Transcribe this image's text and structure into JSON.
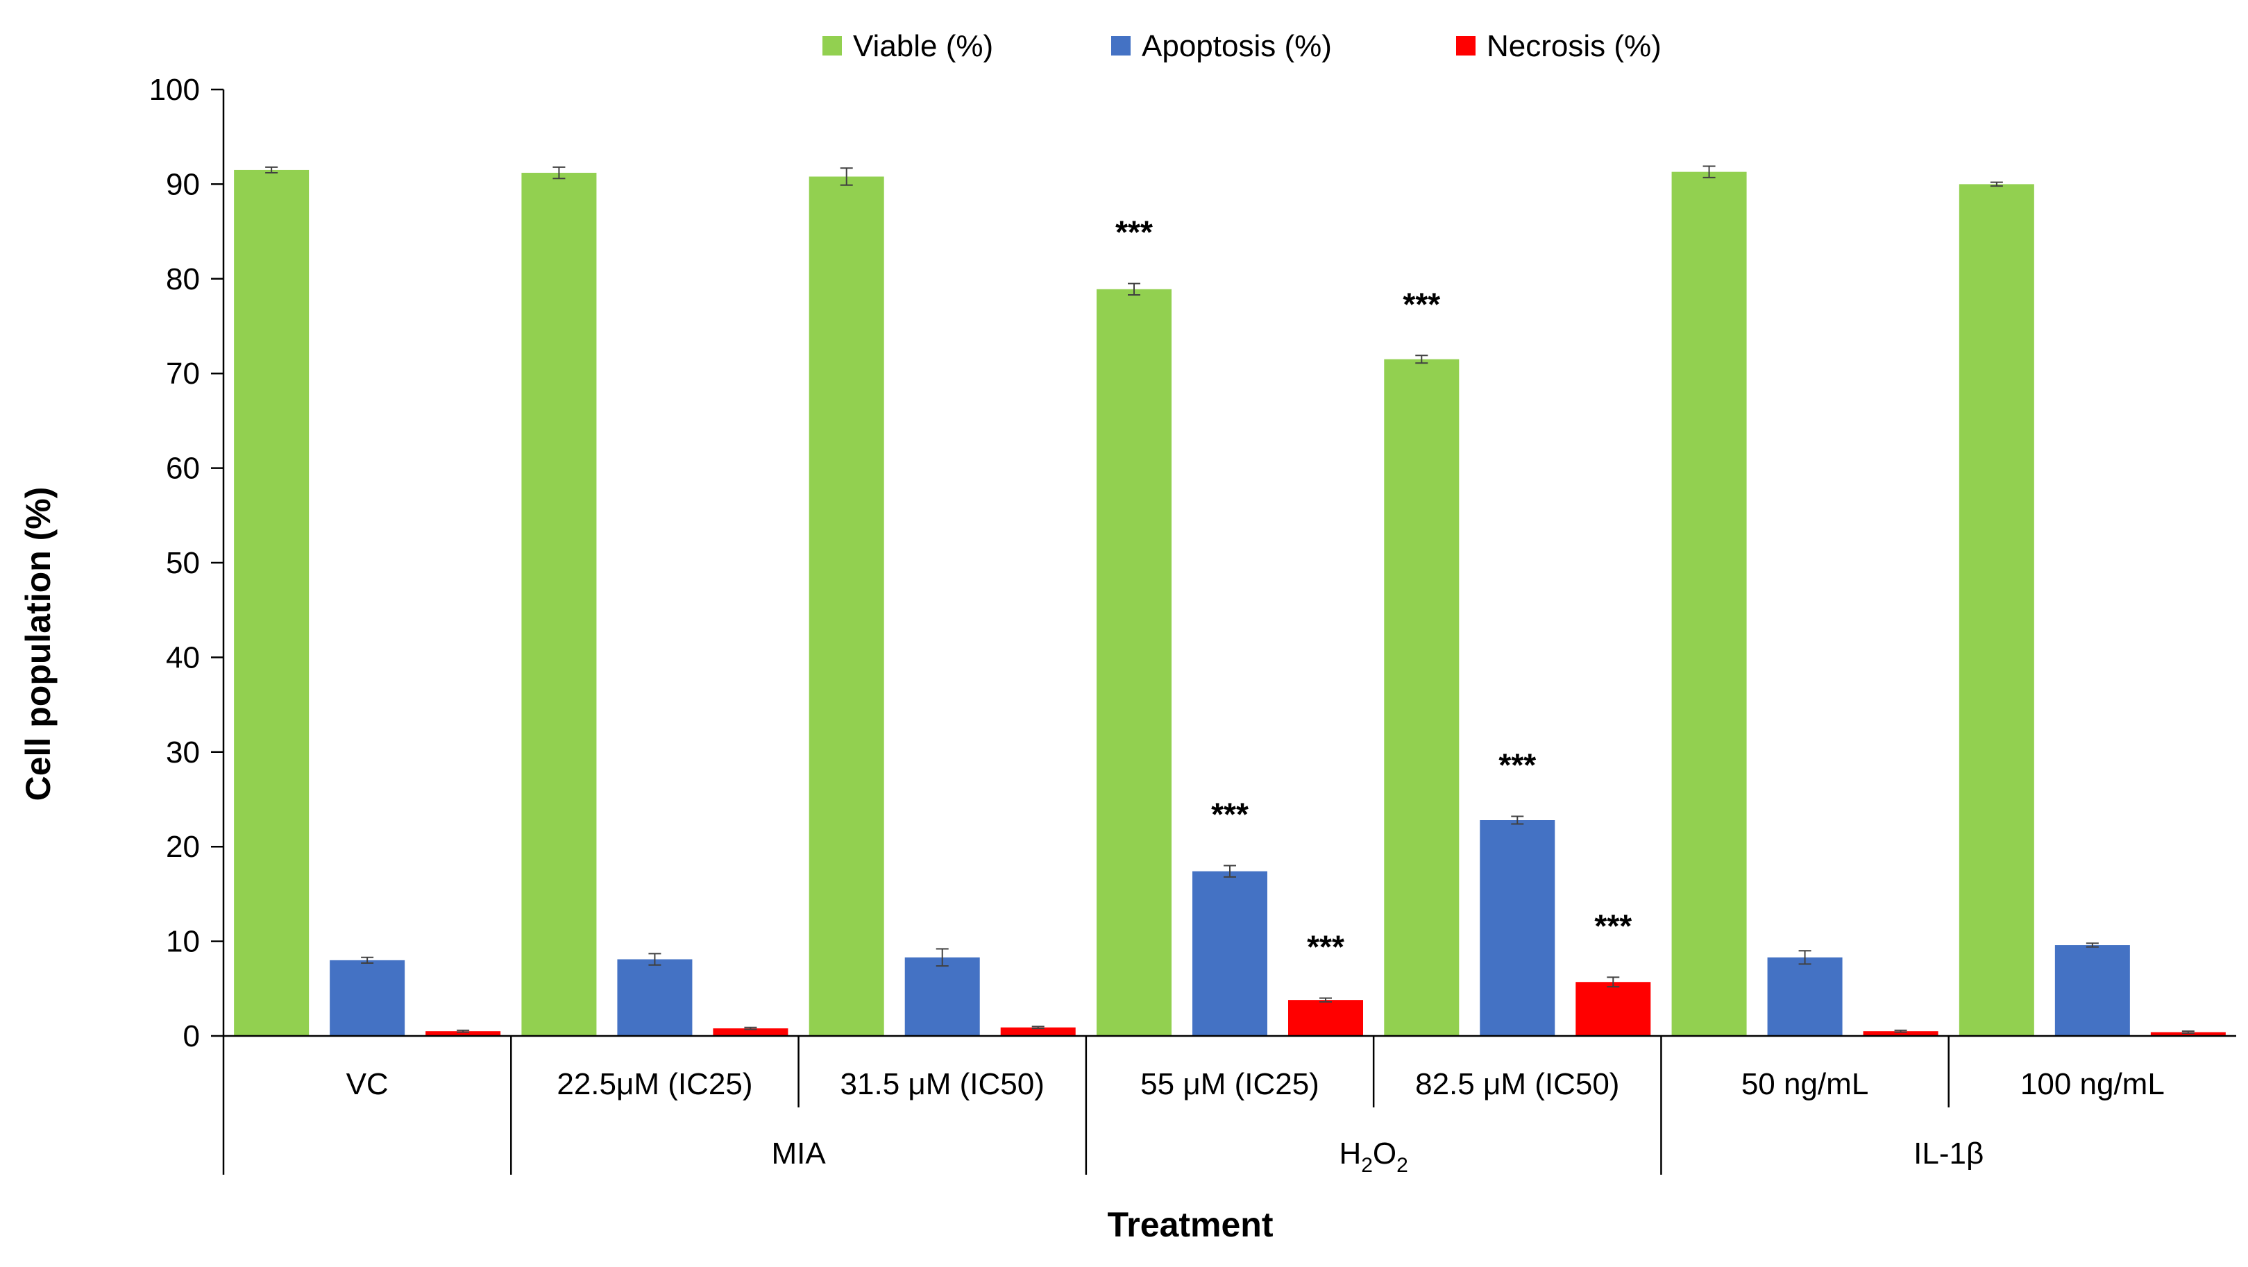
{
  "chart_data": {
    "type": "bar",
    "title": "",
    "xlabel": "Treatment",
    "ylabel": "Cell population (%)",
    "ylim": [
      0,
      100
    ],
    "yticks": [
      0,
      10,
      20,
      30,
      40,
      50,
      60,
      70,
      80,
      90,
      100
    ],
    "grid": false,
    "legend_position": "top-center",
    "categories": [
      "VC",
      "22.5μM (IC25)",
      "31.5 μM (IC50)",
      "55 μM (IC25)",
      "82.5 μM (IC50)",
      "50 ng/mL",
      "100 ng/mL"
    ],
    "groups": [
      {
        "label": "",
        "sub": "",
        "span": [
          0,
          0
        ]
      },
      {
        "label": "MIA",
        "sub": "",
        "span": [
          1,
          2
        ]
      },
      {
        "label": "H",
        "sub": "2",
        "label_tail": "O",
        "sub_tail": "2",
        "span": [
          3,
          4
        ]
      },
      {
        "label": "IL-1β",
        "sub": "",
        "span": [
          5,
          6
        ]
      }
    ],
    "series": [
      {
        "name": "Viable (%)",
        "color": "#92d050",
        "values": [
          91.5,
          91.2,
          90.8,
          78.9,
          71.5,
          91.3,
          90.0
        ],
        "errors": [
          0.3,
          0.6,
          0.9,
          0.6,
          0.4,
          0.6,
          0.2
        ],
        "annotations": [
          "",
          "",
          "",
          "***",
          "***",
          "",
          ""
        ]
      },
      {
        "name": "Apoptosis (%)",
        "color": "#4472c4",
        "values": [
          8.0,
          8.1,
          8.3,
          17.4,
          22.8,
          8.3,
          9.6
        ],
        "errors": [
          0.3,
          0.6,
          0.9,
          0.6,
          0.4,
          0.7,
          0.2
        ],
        "annotations": [
          "",
          "",
          "",
          "***",
          "***",
          "",
          ""
        ]
      },
      {
        "name": "Necrosis (%)",
        "color": "#ff0000",
        "values": [
          0.5,
          0.8,
          0.9,
          3.8,
          5.7,
          0.5,
          0.4
        ],
        "errors": [
          0.1,
          0.1,
          0.1,
          0.2,
          0.5,
          0.1,
          0.1
        ],
        "annotations": [
          "",
          "",
          "",
          "***",
          "***",
          "",
          ""
        ]
      }
    ]
  }
}
